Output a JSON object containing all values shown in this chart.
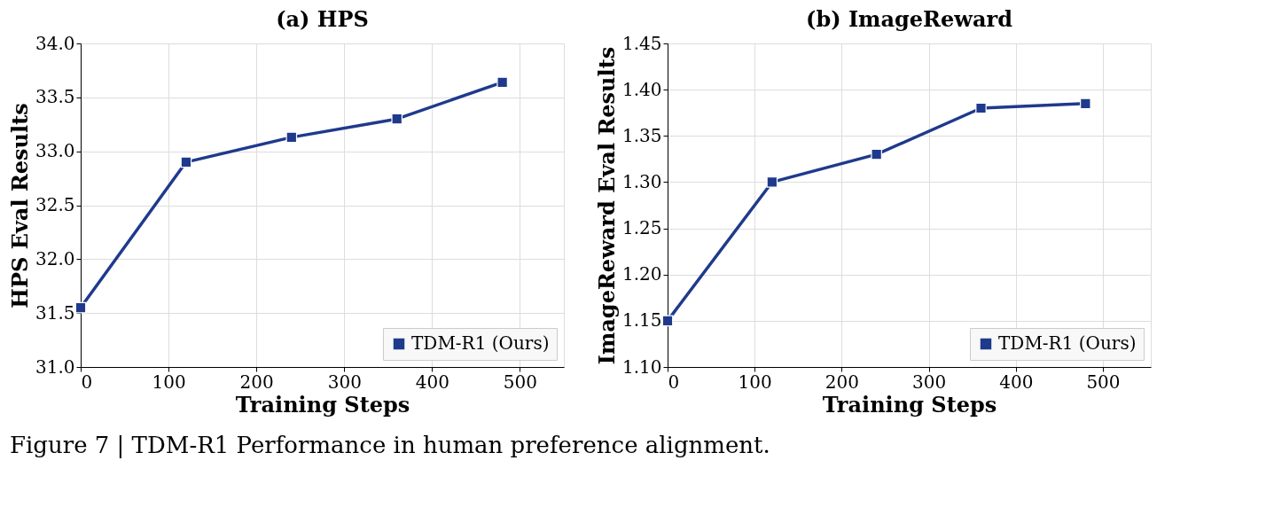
{
  "chart_data": [
    {
      "type": "line",
      "title": "(a) HPS",
      "xlabel": "Training Steps",
      "ylabel": "HPS Eval Results",
      "x": [
        0,
        120,
        240,
        360,
        480
      ],
      "series": [
        {
          "name": "TDM-R1 (Ours)",
          "color": "#1f3a8c",
          "values": [
            31.55,
            32.9,
            33.13,
            33.3,
            33.64
          ]
        }
      ],
      "xlim": [
        0,
        550
      ],
      "xticks": [
        0,
        100,
        200,
        300,
        400,
        500
      ],
      "ylim": [
        31,
        34
      ],
      "yticks": [
        {
          "value": 31,
          "label": "31.0"
        },
        31.5,
        {
          "value": 32,
          "label": "32.0"
        },
        32.5,
        {
          "value": 33,
          "label": "33.0"
        },
        33.5,
        {
          "value": 34,
          "label": "34.0"
        }
      ],
      "grid": true,
      "legend": "bottom right",
      "marker": "square",
      "line_style": "solid",
      "annotations": [
        "Figure 7 | TDM-R1 Performance in human preference alignment."
      ]
    },
    {
      "type": "line",
      "title": "(b) ImageReward",
      "xlabel": "Training Steps",
      "ylabel": "ImageReward Eval Results",
      "x": [
        0,
        120,
        240,
        360,
        480
      ],
      "series": [
        {
          "name": "TDM-R1 (Ours)",
          "color": "#1f3a8c",
          "values": [
            1.15,
            1.3,
            1.33,
            1.38,
            1.385
          ]
        }
      ],
      "xlim": [
        0,
        555
      ],
      "xticks": [
        0,
        100,
        200,
        300,
        400,
        500
      ],
      "ylim": [
        1.1,
        1.45
      ],
      "yticks": [
        {
          "value": 1.1,
          "label": "1.10"
        },
        1.15,
        {
          "value": 1.2,
          "label": "1.20"
        },
        1.25,
        {
          "value": 1.3,
          "label": "1.30"
        },
        1.35,
        {
          "value": 1.4,
          "label": "1.40"
        },
        1.45
      ],
      "grid": true,
      "legend": "bottom right",
      "marker": "square",
      "line_style": "solid"
    }
  ]
}
